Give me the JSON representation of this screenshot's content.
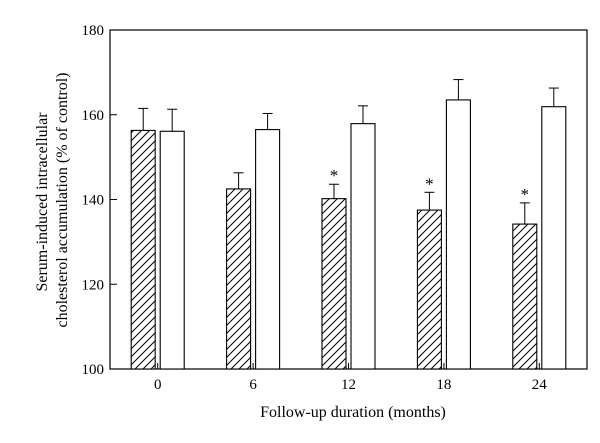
{
  "chart_data": {
    "type": "bar",
    "title": "",
    "xlabel": "Follow-up duration (months)",
    "ylabel_lines": [
      "Serum-induced intracellular",
      "cholesterol accumulation (% of control)"
    ],
    "categories": [
      "0",
      "6",
      "12",
      "18",
      "24"
    ],
    "ylim": [
      100,
      180
    ],
    "yticks": [
      100,
      120,
      140,
      160,
      180
    ],
    "grid": false,
    "legend": "none",
    "series": [
      {
        "pattern": "hatched",
        "values": [
          156.3,
          142.5,
          140.2,
          137.5,
          134.2
        ],
        "errors": [
          5.2,
          3.8,
          3.4,
          4.2,
          5.0
        ],
        "annotations": [
          "",
          "",
          "*",
          "*",
          "*"
        ]
      },
      {
        "pattern": "open",
        "values": [
          156.1,
          156.5,
          157.9,
          163.5,
          161.9
        ],
        "errors": [
          5.2,
          3.8,
          4.2,
          4.8,
          4.4
        ],
        "annotations": [
          "",
          "",
          "",
          "",
          ""
        ]
      }
    ],
    "colors": {
      "stroke": "#000000",
      "fill": "#ffffff"
    }
  }
}
